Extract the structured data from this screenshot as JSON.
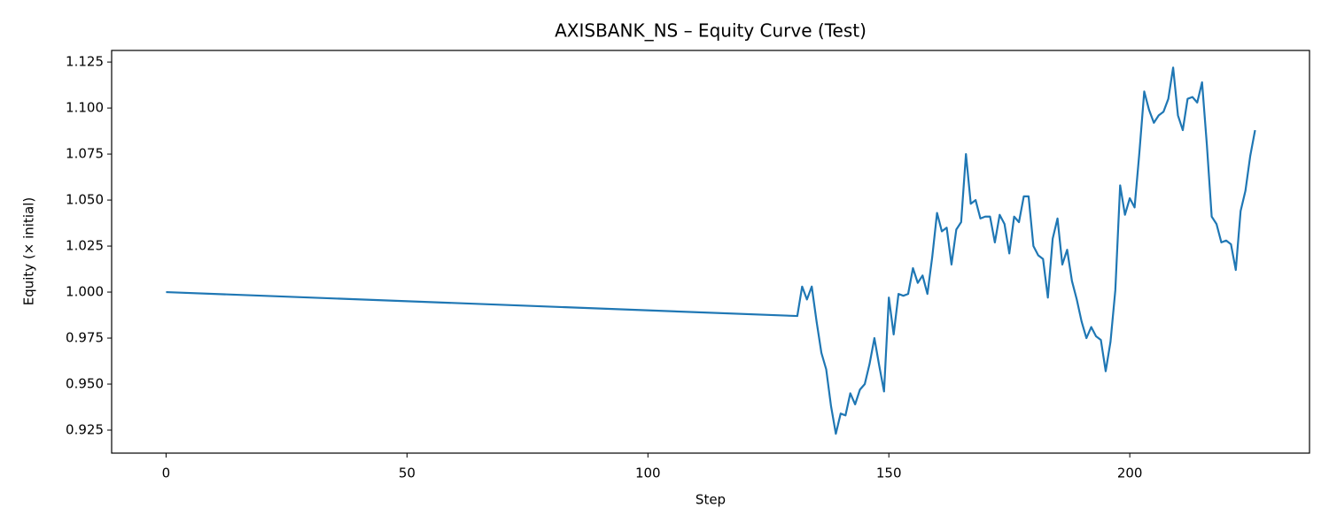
{
  "chart_data": {
    "type": "line",
    "title": "AXISBANK_NS – Equity Curve (Test)",
    "x_label": "Step",
    "y_label": "Equity (× initial)",
    "x": [
      0,
      131,
      132,
      133,
      134,
      135,
      136,
      137,
      138,
      139,
      140,
      141,
      142,
      143,
      144,
      145,
      146,
      147,
      148,
      149,
      150,
      151,
      152,
      153,
      154,
      155,
      156,
      157,
      158,
      159,
      160,
      161,
      162,
      163,
      164,
      165,
      166,
      167,
      168,
      169,
      170,
      171,
      172,
      173,
      174,
      175,
      176,
      177,
      178,
      179,
      180,
      181,
      182,
      183,
      184,
      185,
      186,
      187,
      188,
      189,
      190,
      191,
      192,
      193,
      194,
      195,
      196,
      197,
      198,
      199,
      200,
      201,
      202,
      203,
      204,
      205,
      206,
      207,
      208,
      209,
      210,
      211,
      212,
      213,
      214,
      215,
      216,
      217,
      218,
      219,
      220,
      221,
      222,
      223,
      224,
      225,
      226
    ],
    "series": [
      {
        "name": "Equity",
        "color": "#1f77b4",
        "values": [
          1.0,
          0.987,
          1.003,
          0.996,
          1.003,
          0.984,
          0.967,
          0.958,
          0.938,
          0.923,
          0.934,
          0.933,
          0.945,
          0.939,
          0.947,
          0.95,
          0.961,
          0.975,
          0.96,
          0.946,
          0.997,
          0.977,
          0.999,
          0.998,
          0.999,
          1.013,
          1.005,
          1.009,
          0.999,
          1.019,
          1.043,
          1.033,
          1.035,
          1.015,
          1.034,
          1.038,
          1.075,
          1.048,
          1.05,
          1.04,
          1.041,
          1.041,
          1.027,
          1.042,
          1.037,
          1.021,
          1.041,
          1.038,
          1.052,
          1.052,
          1.025,
          1.02,
          1.018,
          0.997,
          1.029,
          1.04,
          1.015,
          1.023,
          1.006,
          0.996,
          0.984,
          0.975,
          0.981,
          0.976,
          0.974,
          0.957,
          0.973,
          1.001,
          1.058,
          1.042,
          1.051,
          1.046,
          1.076,
          1.109,
          1.099,
          1.092,
          1.096,
          1.098,
          1.105,
          1.122,
          1.096,
          1.088,
          1.105,
          1.106,
          1.103,
          1.114,
          1.08,
          1.041,
          1.037,
          1.027,
          1.028,
          1.026,
          1.012,
          1.044,
          1.055,
          1.074,
          1.088
        ]
      }
    ],
    "xlim": [
      -11.3,
      237.3
    ],
    "xticks": [
      0,
      50,
      100,
      150,
      200
    ],
    "ylim": [
      0.9125,
      1.1313
    ],
    "yticks": [
      0.925,
      {
        "value": 0.95,
        "label": "0.950"
      },
      0.975,
      {
        "value": 1.0,
        "label": "1.000"
      },
      1.025,
      {
        "value": 1.05,
        "label": "1.050"
      },
      1.075,
      {
        "value": 1.1,
        "label": "1.100"
      },
      1.125
    ],
    "grid": false
  }
}
